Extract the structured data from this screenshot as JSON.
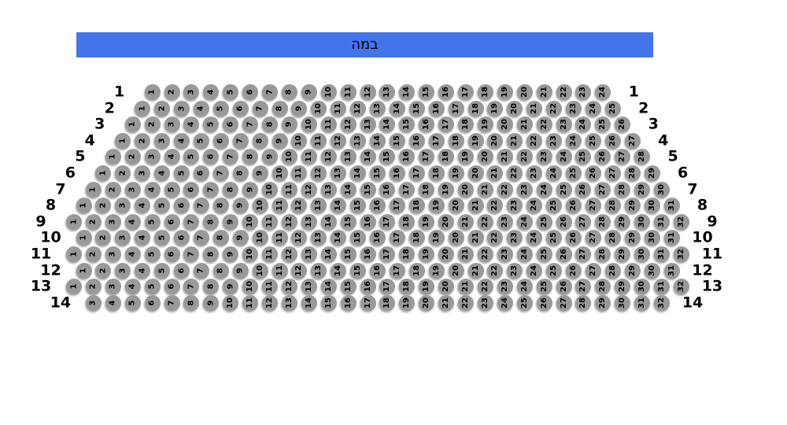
{
  "stage": {
    "label": "במה"
  },
  "colors": {
    "stage_blue": "#4375EA",
    "seat_gray": "#999999",
    "seat_number_black": "#000000",
    "row_label_black": "#000000",
    "background_white": "#ffffff"
  },
  "seating": {
    "total_rows": 14,
    "rows": [
      {
        "row_label": "1",
        "first_seat": 1,
        "last_seat": 24
      },
      {
        "row_label": "2",
        "first_seat": 1,
        "last_seat": 25
      },
      {
        "row_label": "3",
        "first_seat": 1,
        "last_seat": 26
      },
      {
        "row_label": "4",
        "first_seat": 1,
        "last_seat": 27
      },
      {
        "row_label": "5",
        "first_seat": 1,
        "last_seat": 28
      },
      {
        "row_label": "6",
        "first_seat": 1,
        "last_seat": 29
      },
      {
        "row_label": "7",
        "first_seat": 1,
        "last_seat": 30
      },
      {
        "row_label": "8",
        "first_seat": 1,
        "last_seat": 31
      },
      {
        "row_label": "9",
        "first_seat": 1,
        "last_seat": 32
      },
      {
        "row_label": "10",
        "first_seat": 1,
        "last_seat": 31
      },
      {
        "row_label": "11",
        "first_seat": 1,
        "last_seat": 32
      },
      {
        "row_label": "12",
        "first_seat": 1,
        "last_seat": 31
      },
      {
        "row_label": "13",
        "first_seat": 1,
        "last_seat": 32
      },
      {
        "row_label": "14",
        "first_seat": 3,
        "last_seat": 32
      }
    ]
  }
}
